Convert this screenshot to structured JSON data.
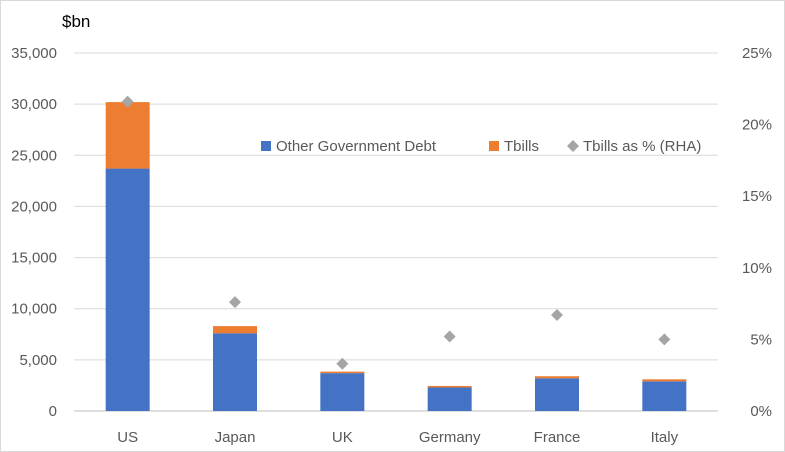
{
  "chart_data": {
    "type": "bar",
    "stacked": true,
    "y_unit_label": "$bn",
    "categories": [
      "US",
      "Japan",
      "UK",
      "Germany",
      "France",
      "Italy"
    ],
    "series": [
      {
        "name": "Other Government Debt",
        "color": "#4472c4",
        "values": [
          23700,
          7600,
          3700,
          2300,
          3200,
          2900
        ]
      },
      {
        "name": "Tbills",
        "color": "#ed7d31",
        "values": [
          6500,
          700,
          150,
          150,
          200,
          200
        ]
      }
    ],
    "secondary_series": {
      "name": "Tbills as % (RHA)",
      "color": "#a5a5a5",
      "marker": "diamond",
      "values": [
        21.6,
        7.6,
        3.3,
        5.2,
        6.7,
        5.0
      ]
    },
    "y_ticks": [
      "0",
      "5,000",
      "10,000",
      "15,000",
      "20,000",
      "25,000",
      "30,000",
      "35,000"
    ],
    "y_tick_values": [
      0,
      5000,
      10000,
      15000,
      20000,
      25000,
      30000,
      35000
    ],
    "y2_ticks": [
      "0%",
      "5%",
      "10%",
      "15%",
      "20%",
      "25%"
    ],
    "y2_tick_values": [
      0,
      5,
      10,
      15,
      20,
      25
    ],
    "ylim": [
      0,
      35000
    ],
    "y2lim": [
      0,
      25
    ],
    "grid": true,
    "legend_position": "upper-right"
  }
}
